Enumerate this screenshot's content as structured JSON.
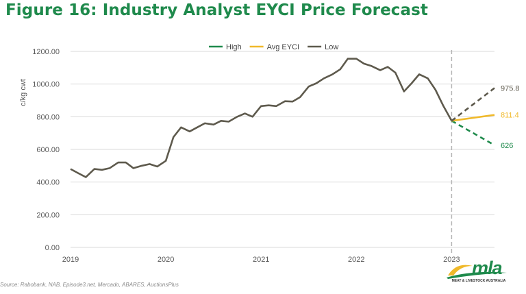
{
  "figure_title": "Figure 16: Industry Analyst EYCI Price Forecast",
  "source_note": "Source: Rabobank, NAB, Episode3.net, Mercado, ABARES, AuctionsPlus",
  "logo": {
    "word": "mla",
    "tagline": "MEAT & LIVESTOCK AUSTRALIA"
  },
  "chart_data": {
    "type": "line",
    "title": "",
    "xlabel": "",
    "ylabel": "c/kg cwt",
    "xlim": [
      2019,
      2023.45
    ],
    "ylim": [
      0,
      1200
    ],
    "yticks": [
      0,
      200,
      400,
      600,
      800,
      1000,
      1200
    ],
    "ytick_labels": [
      "0.00",
      "200.00",
      "400.00",
      "600.00",
      "800.00",
      "1000.00",
      "1200.00"
    ],
    "xticks": [
      2019,
      2020,
      2021,
      2022,
      2023
    ],
    "xtick_labels": [
      "2019",
      "2020",
      "2021",
      "2022",
      "2023"
    ],
    "grid": true,
    "legend_position": "top-center",
    "reference_line_x": 2023,
    "colors": {
      "High": "#1f8a4c",
      "Avg EYCI": "#f0b92a",
      "Low": "#5e5a4d",
      "reference": "#b5b5b5",
      "grid": "#d9d9d9"
    },
    "series": [
      {
        "name": "High",
        "dashed": true,
        "x": [
          2023,
          2023.45
        ],
        "y": [
          775,
          626
        ],
        "end_label": "626"
      },
      {
        "name": "Avg EYCI",
        "dashed": false,
        "x": [
          2023,
          2023.45
        ],
        "y": [
          775,
          811.4
        ],
        "end_label": "811.4"
      },
      {
        "name": "Low",
        "dashed": false,
        "x": [
          2023,
          2023.45
        ],
        "y": [
          775,
          975.8
        ],
        "end_label": "975.8",
        "end_dashed": true
      },
      {
        "name": "history",
        "legend": false,
        "dashed": false,
        "x": [
          2019.0,
          2019.08,
          2019.16,
          2019.25,
          2019.33,
          2019.41,
          2019.5,
          2019.58,
          2019.66,
          2019.75,
          2019.83,
          2019.91,
          2020.0,
          2020.08,
          2020.16,
          2020.25,
          2020.33,
          2020.41,
          2020.5,
          2020.58,
          2020.66,
          2020.75,
          2020.83,
          2020.91,
          2021.0,
          2021.08,
          2021.16,
          2021.25,
          2021.33,
          2021.41,
          2021.5,
          2021.58,
          2021.66,
          2021.75,
          2021.83,
          2021.91,
          2022.0,
          2022.08,
          2022.16,
          2022.25,
          2022.33,
          2022.41,
          2022.5,
          2022.58,
          2022.66,
          2022.75,
          2022.83,
          2022.91,
          2023.0
        ],
        "y": [
          480,
          455,
          430,
          480,
          475,
          485,
          520,
          520,
          485,
          500,
          510,
          495,
          530,
          675,
          735,
          710,
          735,
          760,
          752,
          775,
          770,
          800,
          820,
          800,
          865,
          870,
          865,
          895,
          893,
          920,
          985,
          1005,
          1035,
          1060,
          1090,
          1155,
          1155,
          1125,
          1110,
          1085,
          1105,
          1070,
          955,
          1005,
          1060,
          1035,
          965,
          870,
          775
        ]
      }
    ]
  }
}
